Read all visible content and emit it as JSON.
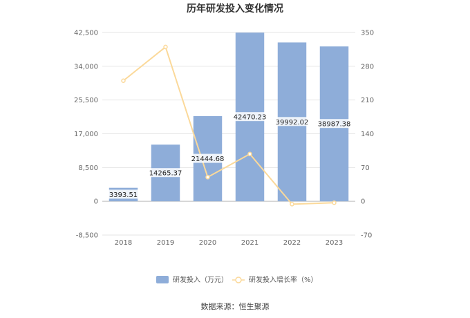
{
  "chart_data": {
    "type": "bar+line",
    "title": "历年研发投入变化情况",
    "categories": [
      "2018",
      "2019",
      "2020",
      "2021",
      "2022",
      "2023"
    ],
    "series": [
      {
        "name": "研发投入（万元）",
        "type": "bar",
        "axis": "left",
        "color": "#8eadd9",
        "values": [
          3393.51,
          14265.37,
          21444.68,
          42470.23,
          39992.02,
          38987.38
        ],
        "labels": [
          "3393.51",
          "14265.37",
          "21444.68",
          "42470.23",
          "39992.02",
          "38987.38"
        ]
      },
      {
        "name": "研发投入增长率（%）",
        "type": "line",
        "axis": "right",
        "color": "#fbd99a",
        "values": [
          250,
          320,
          50,
          98,
          -6,
          -3
        ]
      }
    ],
    "y_left": {
      "min": -8500,
      "max": 42500,
      "ticks": [
        "42,500",
        "34,000",
        "25,500",
        "17,000",
        "8,500",
        "0",
        "-8,500"
      ],
      "tick_values": [
        42500,
        34000,
        25500,
        17000,
        8500,
        0,
        -8500
      ]
    },
    "y_right": {
      "min": -70,
      "max": 350,
      "ticks": [
        "350",
        "280",
        "210",
        "140",
        "70",
        "0",
        "-70"
      ],
      "tick_values": [
        350,
        280,
        210,
        140,
        70,
        0,
        -70
      ]
    },
    "grid": true,
    "legend_position": "bottom"
  },
  "footer": {
    "source": "数据来源：恒生聚源"
  }
}
